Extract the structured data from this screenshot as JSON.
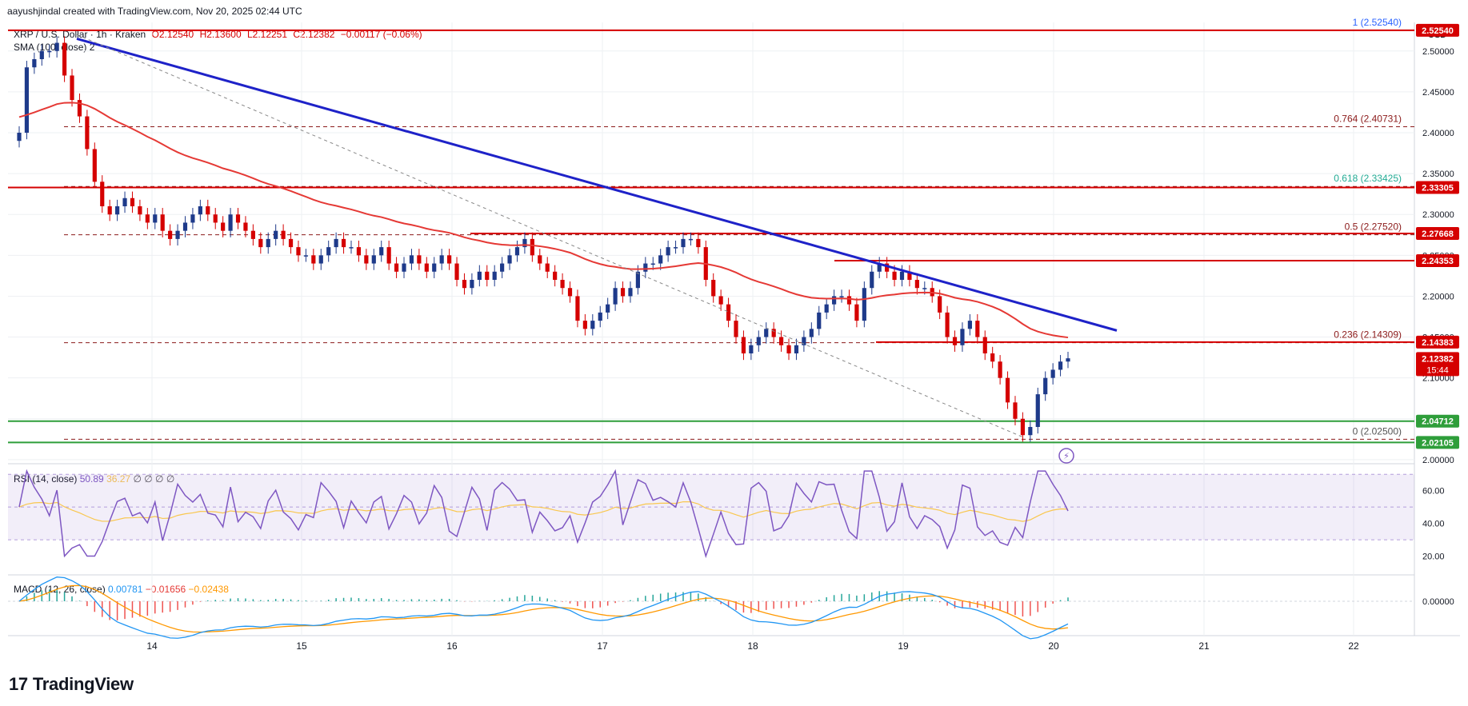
{
  "header": {
    "attribution": "aayushjindal created with TradingView.com, Nov 20, 2025 02:44 UTC"
  },
  "legend": {
    "symbol": "XRP / U.S. Dollar · 1h · Kraken",
    "open": "O2.12540",
    "high": "H2.13600",
    "low": "L2.12251",
    "close": "C2.12382",
    "change": "−0.00117 (−0.06%)"
  },
  "sma_label": "SMA (100, close) 2",
  "rsi": {
    "label": "RSI (14, close)",
    "value": "50.89",
    "ma": "36.27",
    "extra": "∅ ∅ ∅ ∅"
  },
  "macd": {
    "label": "MACD (12, 26, close)",
    "v1": "0.00781",
    "v2": "−0.01656",
    "v3": "−0.02438"
  },
  "logo_text": "TradingView",
  "currency": "USD",
  "colors": {
    "up": "#1e3a8a",
    "down": "#d50000",
    "sma": "#e53935",
    "trend": "#1e22c8",
    "support": "#2e9e3a",
    "resistance": "#d50000",
    "fib_text": "#8b1a1a",
    "fib_green": "#22ab94",
    "rsi": "#7e57c2",
    "rsi_ma": "#f9c74f",
    "macd": "#2196f3",
    "signal": "#ff9800"
  },
  "chart_data": {
    "type": "candlestick",
    "x_ticks": [
      "14",
      "15",
      "16",
      "17",
      "18",
      "19",
      "20",
      "21",
      "22"
    ],
    "y_ticks": [
      "2.50000",
      "2.45000",
      "2.40000",
      "2.35000",
      "2.30000",
      "2.25000",
      "2.20000",
      "2.15000",
      "2.10000",
      "2.05000",
      "2.00000"
    ],
    "ylim": [
      1.995,
      2.535
    ],
    "closes": [
      2.4,
      2.48,
      2.49,
      2.5,
      2.5,
      2.51,
      2.47,
      2.44,
      2.42,
      2.38,
      2.34,
      2.31,
      2.3,
      2.31,
      2.32,
      2.31,
      2.3,
      2.29,
      2.3,
      2.28,
      2.27,
      2.28,
      2.29,
      2.3,
      2.31,
      2.3,
      2.29,
      2.28,
      2.3,
      2.29,
      2.28,
      2.27,
      2.26,
      2.27,
      2.28,
      2.27,
      2.26,
      2.25,
      2.25,
      2.24,
      2.25,
      2.26,
      2.27,
      2.26,
      2.26,
      2.25,
      2.24,
      2.25,
      2.26,
      2.24,
      2.23,
      2.24,
      2.25,
      2.24,
      2.23,
      2.24,
      2.25,
      2.24,
      2.22,
      2.21,
      2.22,
      2.23,
      2.22,
      2.23,
      2.24,
      2.25,
      2.26,
      2.27,
      2.25,
      2.24,
      2.23,
      2.22,
      2.21,
      2.2,
      2.17,
      2.16,
      2.17,
      2.18,
      2.19,
      2.21,
      2.2,
      2.21,
      2.23,
      2.24,
      2.24,
      2.25,
      2.26,
      2.26,
      2.27,
      2.27,
      2.26,
      2.22,
      2.2,
      2.19,
      2.17,
      2.15,
      2.13,
      2.14,
      2.15,
      2.16,
      2.15,
      2.14,
      2.13,
      2.14,
      2.15,
      2.16,
      2.18,
      2.19,
      2.2,
      2.2,
      2.19,
      2.17,
      2.21,
      2.23,
      2.24,
      2.23,
      2.22,
      2.23,
      2.22,
      2.21,
      2.21,
      2.2,
      2.18,
      2.15,
      2.14,
      2.16,
      2.17,
      2.15,
      2.13,
      2.12,
      2.1,
      2.07,
      2.05,
      2.03,
      2.04,
      2.08,
      2.1,
      2.11,
      2.12,
      2.124
    ],
    "sma100_start": 2.42,
    "fib_levels": [
      {
        "ratio": "1",
        "price": 2.5254,
        "label": "1 (2.52540)"
      },
      {
        "ratio": "0.764",
        "price": 2.40731,
        "label": "0.764 (2.40731)"
      },
      {
        "ratio": "0.618",
        "price": 2.33425,
        "label": "0.618 (2.33425)"
      },
      {
        "ratio": "0.5",
        "price": 2.2752,
        "label": "0.5 (2.27520)"
      },
      {
        "ratio": "0.236",
        "price": 2.14309,
        "label": "0.236 (2.14309)"
      },
      {
        "ratio": "0",
        "price": 2.025,
        "label": "0 (2.02500)"
      }
    ],
    "price_tags": [
      {
        "price": 2.5254,
        "label": "2.52540",
        "color": "#d50000"
      },
      {
        "price": 2.33305,
        "label": "2.33305",
        "color": "#d50000"
      },
      {
        "price": 2.27668,
        "label": "2.27668",
        "color": "#d50000"
      },
      {
        "price": 2.24353,
        "label": "2.24353",
        "color": "#d50000"
      },
      {
        "price": 2.14383,
        "label": "2.14383",
        "color": "#d50000"
      },
      {
        "price": 2.12382,
        "label": "2.12382",
        "sub": "15:44",
        "color": "#d50000"
      },
      {
        "price": 2.04712,
        "label": "2.04712",
        "color": "#2e9e3a"
      },
      {
        "price": 2.02105,
        "label": "2.02105",
        "color": "#2e9e3a"
      }
    ],
    "rsi_ticks": [
      "60.00",
      "40.00",
      "20.00"
    ],
    "macd_ticks": [
      "0.00000"
    ]
  }
}
